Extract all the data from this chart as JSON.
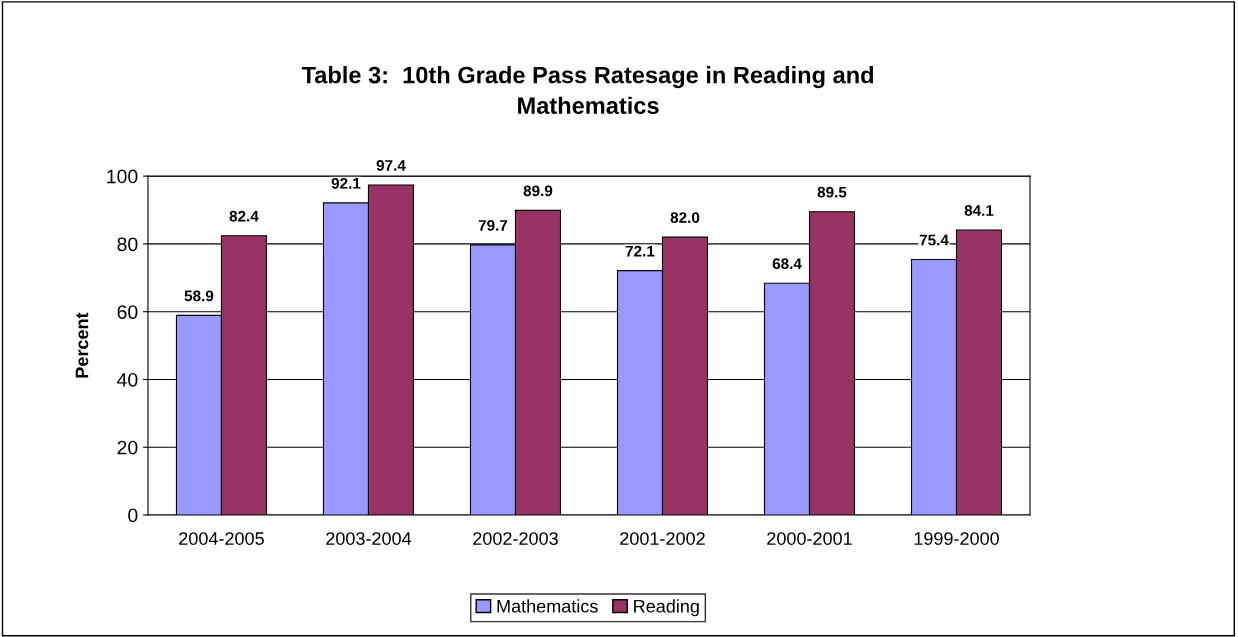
{
  "chart_data": {
    "type": "bar",
    "title": "Table 3:  10th Grade Pass Ratesage in Reading and\nMathematics",
    "ylabel": "Percent",
    "categories": [
      "2004-2005",
      "2003-2004",
      "2002-2003",
      "2001-2002",
      "2000-2001",
      "1999-2000"
    ],
    "series": [
      {
        "name": "Mathematics",
        "color": "#9999ff",
        "values": [
          58.9,
          92.1,
          79.7,
          72.1,
          68.4,
          75.4
        ],
        "value_labels": [
          "58.9",
          "92.1",
          "79.7",
          "72.1",
          "68.4",
          "75.4"
        ]
      },
      {
        "name": "Reading",
        "color": "#993366",
        "values": [
          82.4,
          97.4,
          89.9,
          82.0,
          89.5,
          84.1
        ],
        "value_labels": [
          "82.4",
          "97.4",
          "89.9",
          "82.0",
          "89.5",
          "84.1"
        ]
      }
    ],
    "ylim": [
      0,
      100
    ],
    "yticks": [
      0,
      20,
      40,
      60,
      80,
      100
    ],
    "grid": "y",
    "legend": "bottom"
  }
}
